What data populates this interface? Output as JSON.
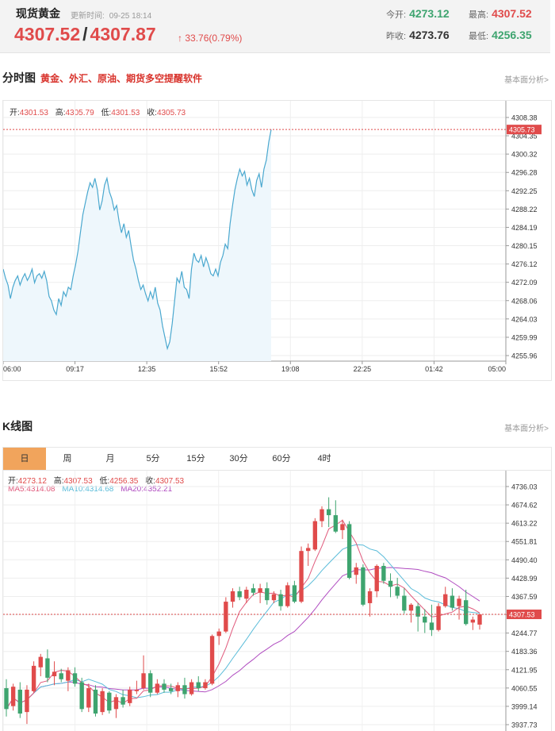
{
  "header": {
    "title": "现货黄金",
    "update_label": "更新时间:",
    "update_time": "09-25 18:14",
    "bid": "4307.52",
    "separator": "/",
    "ask": "4307.87",
    "change_arrow": "↑",
    "change": "33.76(0.79%)",
    "open_label": "今开:",
    "open": "4273.12",
    "high_label": "最高:",
    "high": "4307.52",
    "prev_close_label": "昨收:",
    "prev_close": "4273.76",
    "low_label": "最低:",
    "low": "4256.35"
  },
  "intraday": {
    "title": "分时图",
    "promo": "黄金、外汇、原油、期货多空提醒软件",
    "link": "基本面分析>",
    "ohlc": {
      "open_label": "开:",
      "open": "4301.53",
      "high_label": "高:",
      "high": "4305.79",
      "low_label": "低:",
      "low": "4301.53",
      "close_label": "收:",
      "close": "4305.73"
    },
    "current_price_tag": "4305.73"
  },
  "kline": {
    "title": "K线图",
    "link": "基本面分析>",
    "tabs": [
      "日",
      "周",
      "月",
      "5分",
      "15分",
      "30分",
      "60分",
      "4时"
    ],
    "active_tab": 0,
    "ohlc": {
      "open_label": "开:",
      "open": "4273.12",
      "high_label": "高:",
      "high": "4307.53",
      "low_label": "低:",
      "low": "4256.35",
      "close_label": "收:",
      "close": "4307.53"
    },
    "ma": {
      "ma5_label": "MA5:",
      "ma5": "4314.08",
      "ma10_label": "MA10:",
      "ma10": "4314.68",
      "ma20_label": "MA20:",
      "ma20": "4352.21"
    },
    "current_price_tag": "4307.53"
  },
  "colors": {
    "up": "#e04b4b",
    "down": "#3ea46f",
    "intraday_line": "#4aa8cf",
    "intraday_fill": "#eef7fc",
    "ma5": "#e05a7c",
    "ma10": "#5bbcd9",
    "ma20": "#b04cc0"
  },
  "chart_data": [
    {
      "type": "line",
      "title": "分时图",
      "x_tick_labels": [
        "06:00",
        "09:17",
        "12:35",
        "15:52",
        "19:08",
        "22:25",
        "01:42",
        "05:00"
      ],
      "y_tick_labels": [
        "4308.38",
        "4304.35",
        "4300.32",
        "4296.28",
        "4292.25",
        "4288.22",
        "4284.19",
        "4280.15",
        "4276.12",
        "4272.09",
        "4268.06",
        "4264.03",
        "4259.99",
        "4255.96"
      ],
      "ylim": [
        4255.96,
        4308.38
      ],
      "grid": true,
      "series": [
        {
          "values": [
            4275.0,
            4273.0,
            4271.5,
            4268.5,
            4271.0,
            4272.5,
            4273.5,
            4271.5,
            4273.0,
            4274.0,
            4272.5,
            4273.5,
            4275.0,
            4272.0,
            4273.5,
            4274.0,
            4273.0,
            4274.5,
            4272.5,
            4269.0,
            4268.0,
            4266.0,
            4265.0,
            4268.5,
            4267.0,
            4270.0,
            4269.0,
            4271.0,
            4270.5,
            4273.5,
            4276.0,
            4279.0,
            4283.0,
            4287.0,
            4289.5,
            4292.0,
            4294.0,
            4293.0,
            4295.0,
            4292.5,
            4288.0,
            4290.0,
            4293.5,
            4295.0,
            4292.0,
            4290.5,
            4288.0,
            4289.0,
            4285.5,
            4283.0,
            4285.0,
            4282.0,
            4283.5,
            4280.0,
            4277.0,
            4275.0,
            4272.5,
            4270.5,
            4271.5,
            4269.5,
            4268.0,
            4270.0,
            4268.5,
            4271.0,
            4267.5,
            4266.0,
            4262.5,
            4260.0,
            4257.5,
            4259.0,
            4263.0,
            4268.0,
            4273.0,
            4272.0,
            4274.5,
            4271.0,
            4270.5,
            4268.5,
            4275.0,
            4278.5,
            4277.0,
            4276.5,
            4278.0,
            4275.5,
            4277.5,
            4276.0,
            4274.0,
            4273.5,
            4275.0,
            4273.5,
            4276.5,
            4278.0,
            4280.5,
            4279.5,
            4285.0,
            4289.0,
            4292.5,
            4295.0,
            4297.0,
            4295.5,
            4296.5,
            4293.5,
            4295.0,
            4292.5,
            4291.0,
            4294.5,
            4296.0,
            4293.0,
            4297.0,
            4299.0,
            4303.0,
            4305.73
          ]
        }
      ]
    },
    {
      "type": "candlestick",
      "title": "K线图",
      "y_tick_labels": [
        "4736.03",
        "4674.62",
        "4613.22",
        "4551.81",
        "4490.40",
        "4428.99",
        "4367.59",
        "4306.18",
        "4244.77",
        "4183.36",
        "4121.95",
        "4060.55",
        "3999.14",
        "3937.73"
      ],
      "ylim": [
        3937.73,
        4766.0
      ],
      "grid": true,
      "candles": [
        {
          "o": 4060,
          "h": 4090,
          "l": 3965,
          "c": 3990
        },
        {
          "o": 4000,
          "h": 4075,
          "l": 3985,
          "c": 4065
        },
        {
          "o": 4055,
          "h": 4080,
          "l": 3960,
          "c": 3975
        },
        {
          "o": 3980,
          "h": 4070,
          "l": 3940,
          "c": 4055
        },
        {
          "o": 4050,
          "h": 4150,
          "l": 4045,
          "c": 4135
        },
        {
          "o": 4130,
          "h": 4175,
          "l": 4100,
          "c": 4165
        },
        {
          "o": 4160,
          "h": 4190,
          "l": 4080,
          "c": 4095
        },
        {
          "o": 4100,
          "h": 4150,
          "l": 4070,
          "c": 4115
        },
        {
          "o": 4110,
          "h": 4125,
          "l": 4080,
          "c": 4090
        },
        {
          "o": 4085,
          "h": 4130,
          "l": 4050,
          "c": 4120
        },
        {
          "o": 4110,
          "h": 4130,
          "l": 4065,
          "c": 4075
        },
        {
          "o": 4080,
          "h": 4095,
          "l": 3980,
          "c": 3990
        },
        {
          "o": 3995,
          "h": 4075,
          "l": 3980,
          "c": 4060
        },
        {
          "o": 4055,
          "h": 4070,
          "l": 3965,
          "c": 3975
        },
        {
          "o": 3980,
          "h": 4060,
          "l": 3970,
          "c": 4050
        },
        {
          "o": 4045,
          "h": 4050,
          "l": 3975,
          "c": 3985
        },
        {
          "o": 3990,
          "h": 4040,
          "l": 3960,
          "c": 4030
        },
        {
          "o": 4030,
          "h": 4055,
          "l": 3995,
          "c": 4005
        },
        {
          "o": 4010,
          "h": 4065,
          "l": 4000,
          "c": 4055
        },
        {
          "o": 4050,
          "h": 4085,
          "l": 4040,
          "c": 4055
        },
        {
          "o": 4060,
          "h": 4170,
          "l": 4055,
          "c": 4110
        },
        {
          "o": 4110,
          "h": 4120,
          "l": 4030,
          "c": 4045
        },
        {
          "o": 4045,
          "h": 4090,
          "l": 4040,
          "c": 4075
        },
        {
          "o": 4075,
          "h": 4090,
          "l": 4045,
          "c": 4055
        },
        {
          "o": 4060,
          "h": 4075,
          "l": 4040,
          "c": 4050
        },
        {
          "o": 4050,
          "h": 4080,
          "l": 4030,
          "c": 4070
        },
        {
          "o": 4070,
          "h": 4095,
          "l": 4025,
          "c": 4040
        },
        {
          "o": 4040,
          "h": 4090,
          "l": 4035,
          "c": 4080
        },
        {
          "o": 4080,
          "h": 4100,
          "l": 4050,
          "c": 4060
        },
        {
          "o": 4060,
          "h": 4090,
          "l": 4055,
          "c": 4080
        },
        {
          "o": 4075,
          "h": 4240,
          "l": 4070,
          "c": 4235
        },
        {
          "o": 4235,
          "h": 4260,
          "l": 4205,
          "c": 4250
        },
        {
          "o": 4250,
          "h": 4365,
          "l": 4245,
          "c": 4350
        },
        {
          "o": 4350,
          "h": 4395,
          "l": 4330,
          "c": 4385
        },
        {
          "o": 4385,
          "h": 4400,
          "l": 4355,
          "c": 4365
        },
        {
          "o": 4360,
          "h": 4400,
          "l": 4345,
          "c": 4390
        },
        {
          "o": 4395,
          "h": 4410,
          "l": 4370,
          "c": 4380
        },
        {
          "o": 4380,
          "h": 4410,
          "l": 4345,
          "c": 4395
        },
        {
          "o": 4395,
          "h": 4415,
          "l": 4340,
          "c": 4355
        },
        {
          "o": 4355,
          "h": 4385,
          "l": 4345,
          "c": 4375
        },
        {
          "o": 4375,
          "h": 4390,
          "l": 4320,
          "c": 4335
        },
        {
          "o": 4335,
          "h": 4415,
          "l": 4330,
          "c": 4405
        },
        {
          "o": 4405,
          "h": 4420,
          "l": 4345,
          "c": 4350
        },
        {
          "o": 4350,
          "h": 4535,
          "l": 4345,
          "c": 4520
        },
        {
          "o": 4520,
          "h": 4545,
          "l": 4470,
          "c": 4530
        },
        {
          "o": 4525,
          "h": 4630,
          "l": 4520,
          "c": 4620
        },
        {
          "o": 4620,
          "h": 4670,
          "l": 4600,
          "c": 4660
        },
        {
          "o": 4660,
          "h": 4700,
          "l": 4600,
          "c": 4640
        },
        {
          "o": 4640,
          "h": 4690,
          "l": 4580,
          "c": 4585
        },
        {
          "o": 4590,
          "h": 4625,
          "l": 4560,
          "c": 4610
        },
        {
          "o": 4610,
          "h": 4620,
          "l": 4425,
          "c": 4430
        },
        {
          "o": 4440,
          "h": 4480,
          "l": 4410,
          "c": 4465
        },
        {
          "o": 4465,
          "h": 4475,
          "l": 4335,
          "c": 4340
        },
        {
          "o": 4345,
          "h": 4395,
          "l": 4300,
          "c": 4385
        },
        {
          "o": 4385,
          "h": 4475,
          "l": 4365,
          "c": 4470
        },
        {
          "o": 4470,
          "h": 4480,
          "l": 4410,
          "c": 4420
        },
        {
          "o": 4420,
          "h": 4445,
          "l": 4365,
          "c": 4400
        },
        {
          "o": 4400,
          "h": 4430,
          "l": 4360,
          "c": 4370
        },
        {
          "o": 4370,
          "h": 4395,
          "l": 4310,
          "c": 4320
        },
        {
          "o": 4320,
          "h": 4345,
          "l": 4280,
          "c": 4340
        },
        {
          "o": 4335,
          "h": 4345,
          "l": 4250,
          "c": 4300
        },
        {
          "o": 4300,
          "h": 4325,
          "l": 4245,
          "c": 4280
        },
        {
          "o": 4280,
          "h": 4340,
          "l": 4235,
          "c": 4255
        },
        {
          "o": 4255,
          "h": 4345,
          "l": 4250,
          "c": 4335
        },
        {
          "o": 4335,
          "h": 4400,
          "l": 4330,
          "c": 4375
        },
        {
          "o": 4370,
          "h": 4395,
          "l": 4320,
          "c": 4330
        },
        {
          "o": 4335,
          "h": 4370,
          "l": 4290,
          "c": 4360
        },
        {
          "o": 4355,
          "h": 4390,
          "l": 4270,
          "c": 4275
        },
        {
          "o": 4280,
          "h": 4300,
          "l": 4255,
          "c": 4290
        },
        {
          "o": 4273.12,
          "h": 4307.53,
          "l": 4256.35,
          "c": 4307.53
        }
      ]
    }
  ]
}
